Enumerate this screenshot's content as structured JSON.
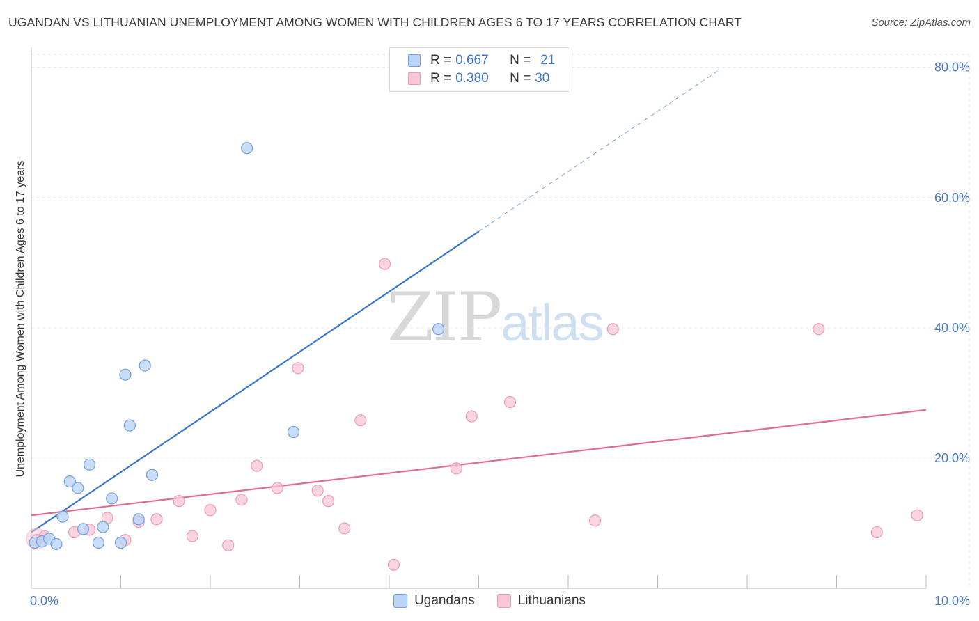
{
  "title": "UGANDAN VS LITHUANIAN UNEMPLOYMENT AMONG WOMEN WITH CHILDREN AGES 6 TO 17 YEARS CORRELATION CHART",
  "source": "Source: ZipAtlas.com",
  "colors": {
    "ugandan_fill": "#bcd4f7",
    "ugandan_stroke": "#6f9fdf",
    "ugandan_line": "#3676c9",
    "lithuanian_fill": "#f8c7d6",
    "lithuanian_stroke": "#ec9ab3",
    "lithuanian_line": "#e06b94",
    "tick_text": "#4a78c4",
    "grid": "#e6e6e6"
  },
  "legend": {
    "rows": [
      {
        "r_label": "R =",
        "r_value": "0.667",
        "n_label": "N =",
        "n_value": "21"
      },
      {
        "r_label": "R =",
        "r_value": "0.380",
        "n_label": "N =",
        "n_value": "30"
      }
    ]
  },
  "watermark": {
    "zip": "ZIP",
    "atlas": "atlas"
  },
  "chart_data": {
    "type": "scatter",
    "title": "UGANDAN VS LITHUANIAN UNEMPLOYMENT AMONG WOMEN WITH CHILDREN AGES 6 TO 17 YEARS CORRELATION CHART",
    "xlabel": "",
    "ylabel": "Unemployment Among Women with Children Ages 6 to 17 years",
    "xlim": [
      0,
      10
    ],
    "ylim": [
      0,
      82
    ],
    "x_tick_labels": [
      "0.0%",
      "10.0%"
    ],
    "y_ticks": [
      20,
      40,
      60,
      80
    ],
    "y_tick_labels": [
      "20.0%",
      "40.0%",
      "60.0%",
      "80.0%"
    ],
    "grid": true,
    "legend_position": "top-center",
    "series": [
      {
        "name": "Ugandans",
        "r": 0.667,
        "n": 21,
        "points": [
          [
            0.04,
            7.0
          ],
          [
            0.12,
            7.2
          ],
          [
            0.2,
            7.6
          ],
          [
            0.28,
            6.8
          ],
          [
            0.35,
            11.0
          ],
          [
            0.43,
            16.4
          ],
          [
            0.52,
            15.4
          ],
          [
            0.58,
            9.1
          ],
          [
            0.65,
            19.0
          ],
          [
            0.75,
            7.0
          ],
          [
            0.8,
            9.4
          ],
          [
            0.9,
            13.8
          ],
          [
            1.0,
            7.0
          ],
          [
            1.05,
            32.8
          ],
          [
            1.1,
            25.0
          ],
          [
            1.2,
            10.6
          ],
          [
            1.27,
            34.2
          ],
          [
            1.35,
            17.4
          ],
          [
            2.41,
            67.6
          ],
          [
            2.93,
            24.0
          ],
          [
            4.55,
            39.8
          ]
        ],
        "trend": {
          "x0": 0.0,
          "y0": 8.6,
          "x1": 5.0,
          "y1": 54.8,
          "dash_x1": 7.7,
          "dash_y1": 79.7
        }
      },
      {
        "name": "Lithuanians",
        "r": 0.38,
        "n": 30,
        "points": [
          [
            0.06,
            7.4
          ],
          [
            0.15,
            8.0
          ],
          [
            0.48,
            8.6
          ],
          [
            0.65,
            9.0
          ],
          [
            0.85,
            10.8
          ],
          [
            1.05,
            7.4
          ],
          [
            1.2,
            10.2
          ],
          [
            1.4,
            10.6
          ],
          [
            1.65,
            13.4
          ],
          [
            1.8,
            8.0
          ],
          [
            2.0,
            12.0
          ],
          [
            2.2,
            6.6
          ],
          [
            2.35,
            13.6
          ],
          [
            2.52,
            18.8
          ],
          [
            2.75,
            15.4
          ],
          [
            2.98,
            33.8
          ],
          [
            3.2,
            15.0
          ],
          [
            3.32,
            13.4
          ],
          [
            3.5,
            9.2
          ],
          [
            3.68,
            25.8
          ],
          [
            3.95,
            49.8
          ],
          [
            4.05,
            3.6
          ],
          [
            4.75,
            18.4
          ],
          [
            4.92,
            26.4
          ],
          [
            5.35,
            28.6
          ],
          [
            6.3,
            10.4
          ],
          [
            6.5,
            39.8
          ],
          [
            8.8,
            39.8
          ],
          [
            9.45,
            8.6
          ],
          [
            9.9,
            11.2
          ]
        ],
        "trend": {
          "x0": 0.0,
          "y0": 11.2,
          "x1": 10.0,
          "y1": 27.4
        }
      }
    ]
  },
  "bottom_legend": [
    {
      "label": "Ugandans"
    },
    {
      "label": "Lithuanians"
    }
  ]
}
